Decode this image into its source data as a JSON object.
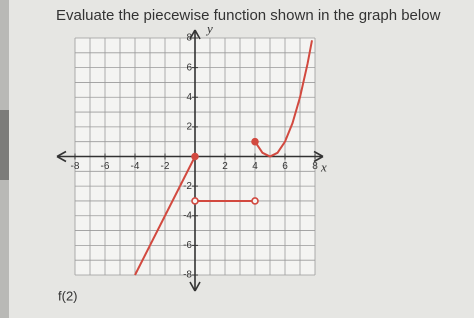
{
  "chart_data": {
    "type": "line",
    "title": "Evaluate the piecewise function shown in the graph below",
    "xlabel": "x",
    "ylabel": "y",
    "xlim": [
      -8,
      8
    ],
    "ylim": [
      -8,
      8
    ],
    "xticks": [
      -8,
      -6,
      -4,
      -2,
      2,
      4,
      6,
      8
    ],
    "yticks": [
      -8,
      -6,
      -4,
      -2,
      2,
      4,
      6,
      8
    ],
    "grid": true,
    "grid_step": 1,
    "series": [
      {
        "color": "#d2493f",
        "x": [
          -4,
          0
        ],
        "values": [
          -8,
          0
        ]
      },
      {
        "color": "#d2493f",
        "x": [
          0,
          4
        ],
        "values": [
          -3,
          -3
        ]
      },
      {
        "color": "#d2493f",
        "x": [
          4,
          4.5,
          5,
          5.5,
          6,
          6.5,
          7,
          7.5,
          7.8
        ],
        "values": [
          1,
          0.25,
          0,
          0.25,
          1,
          2.25,
          4,
          6.25,
          7.84
        ]
      }
    ],
    "points": [
      {
        "x": 0,
        "y": 0,
        "open": false
      },
      {
        "x": 0,
        "y": -3,
        "open": true
      },
      {
        "x": 4,
        "y": -3,
        "open": true
      },
      {
        "x": 4,
        "y": 1,
        "open": false
      }
    ],
    "question": "f(2)"
  }
}
